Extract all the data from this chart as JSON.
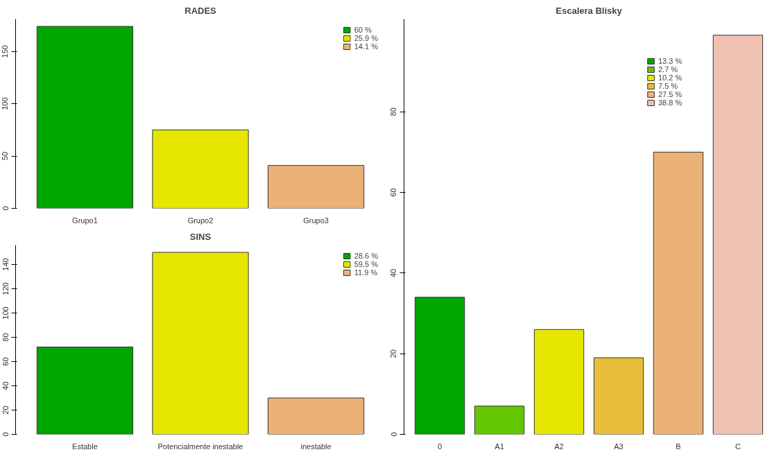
{
  "chart_data": [
    {
      "type": "bar",
      "title": "RADES",
      "categories": [
        "Grupo1",
        "Grupo2",
        "Grupo3"
      ],
      "ylim": [
        0,
        181
      ],
      "yticks": [
        0,
        50,
        100,
        150
      ],
      "grid": false,
      "legend": "top right",
      "series": [
        {
          "name": "60 %",
          "color": "#00a600",
          "values": [
            174,
            null,
            null
          ]
        },
        {
          "name": "25.9 %",
          "color": "#e6e600",
          "values": [
            null,
            75,
            null
          ]
        },
        {
          "name": "14.1 %",
          "color": "#ecb176",
          "values": [
            null,
            null,
            41
          ]
        }
      ]
    },
    {
      "type": "bar",
      "title": "SINS",
      "categories": [
        "Estable",
        "Potencialmente inestable",
        "inestable"
      ],
      "ylim": [
        0,
        156
      ],
      "yticks": [
        0,
        20,
        40,
        60,
        80,
        100,
        120,
        140
      ],
      "grid": false,
      "legend": "top right",
      "series": [
        {
          "name": "28.6 %",
          "color": "#00a600",
          "values": [
            72,
            null,
            null
          ]
        },
        {
          "name": "59.5 %",
          "color": "#e6e600",
          "values": [
            null,
            150,
            null
          ]
        },
        {
          "name": "11.9 %",
          "color": "#ecb176",
          "values": [
            null,
            null,
            30
          ]
        }
      ]
    },
    {
      "type": "bar",
      "title": "Escalera Blisky",
      "categories": [
        "0",
        "A1",
        "A2",
        "A3",
        "B",
        "C"
      ],
      "ylim": [
        0,
        103
      ],
      "yticks": [
        0,
        20,
        40,
        60,
        80
      ],
      "grid": false,
      "legend": "top right",
      "series": [
        {
          "name": "13.3 %",
          "color": "#00a600",
          "values": [
            34,
            null,
            null,
            null,
            null,
            null
          ]
        },
        {
          "name": "2.7 %",
          "color": "#63c600",
          "values": [
            null,
            7,
            null,
            null,
            null,
            null
          ]
        },
        {
          "name": "10.2 %",
          "color": "#e6e600",
          "values": [
            null,
            null,
            26,
            null,
            null,
            null
          ]
        },
        {
          "name": "7.5 %",
          "color": "#e8bd3a",
          "values": [
            null,
            null,
            null,
            19,
            null,
            null
          ]
        },
        {
          "name": "27.5 %",
          "color": "#ecb176",
          "values": [
            null,
            null,
            null,
            null,
            70,
            null
          ]
        },
        {
          "name": "38.8 %",
          "color": "#efc2b3",
          "values": [
            null,
            null,
            null,
            null,
            null,
            99
          ]
        }
      ]
    }
  ]
}
